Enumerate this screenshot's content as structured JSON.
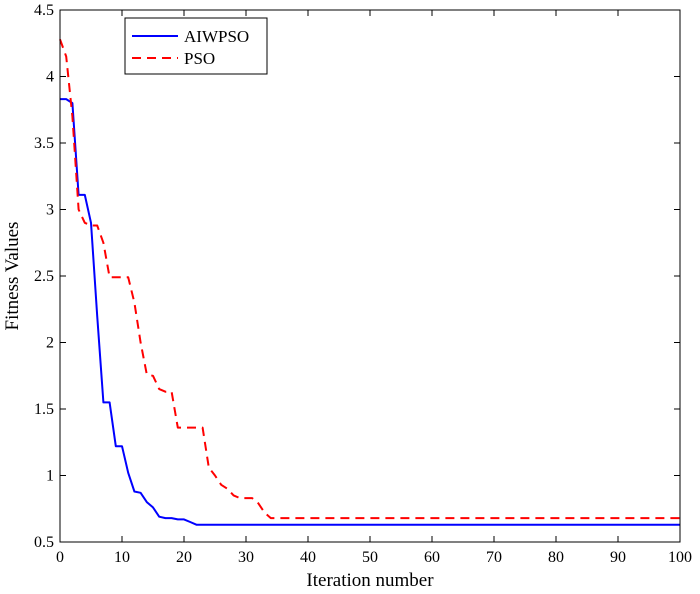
{
  "chart_data": {
    "type": "line",
    "xlabel": "Iteration number",
    "ylabel": "Fitness Values",
    "xlim": [
      0,
      100
    ],
    "ylim": [
      0.5,
      4.5
    ],
    "xticks": [
      0,
      10,
      20,
      30,
      40,
      50,
      60,
      70,
      80,
      90,
      100
    ],
    "yticks": [
      0.5,
      1,
      1.5,
      2,
      2.5,
      3,
      3.5,
      4,
      4.5
    ],
    "yticklabels": [
      "0.5",
      "1",
      "1.5",
      "2",
      "2.5",
      "3",
      "3.5",
      "4",
      "4.5"
    ],
    "grid": false,
    "legend_position": "top-left",
    "series": [
      {
        "name": "AIWPSO",
        "color": "#0000ff",
        "style": "solid",
        "x": [
          0,
          1,
          2,
          3,
          4,
          5,
          6,
          7,
          8,
          9,
          10,
          11,
          12,
          13,
          14,
          15,
          16,
          17,
          18,
          19,
          20,
          21,
          22,
          100
        ],
        "y": [
          3.83,
          3.83,
          3.8,
          3.11,
          3.11,
          2.9,
          2.2,
          1.55,
          1.55,
          1.22,
          1.22,
          1.02,
          0.88,
          0.87,
          0.8,
          0.76,
          0.69,
          0.68,
          0.68,
          0.67,
          0.67,
          0.65,
          0.63,
          0.63
        ]
      },
      {
        "name": "PSO",
        "color": "#ff0000",
        "style": "dashed",
        "x": [
          0,
          1,
          2,
          3,
          4,
          5,
          6,
          7,
          8,
          9,
          10,
          11,
          12,
          13,
          14,
          15,
          16,
          17,
          18,
          19,
          20,
          21,
          22,
          23,
          24,
          25,
          26,
          27,
          28,
          29,
          30,
          31,
          32,
          33,
          34,
          100
        ],
        "y": [
          4.28,
          4.15,
          3.7,
          3.0,
          2.9,
          2.88,
          2.88,
          2.75,
          2.49,
          2.49,
          2.49,
          2.49,
          2.3,
          2.0,
          1.76,
          1.75,
          1.65,
          1.63,
          1.63,
          1.36,
          1.36,
          1.36,
          1.36,
          1.36,
          1.06,
          1.0,
          0.93,
          0.9,
          0.85,
          0.83,
          0.83,
          0.83,
          0.79,
          0.72,
          0.68,
          0.68
        ]
      }
    ]
  }
}
